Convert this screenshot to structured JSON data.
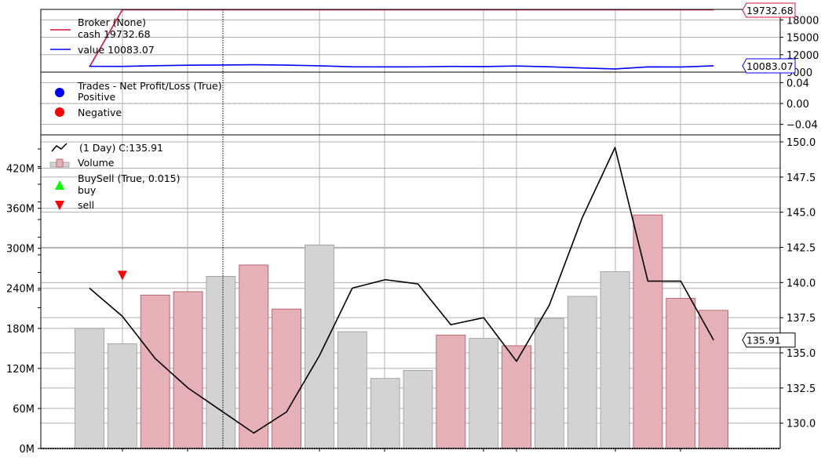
{
  "chart_data": [
    {
      "type": "line",
      "panel": "broker",
      "ylim": [
        9000,
        19800
      ],
      "yticks": [
        "9000",
        "12000",
        "15000",
        "18000"
      ],
      "ytick_values": [
        9000,
        12000,
        15000,
        18000
      ],
      "legend_placement": "top-left",
      "grid": true,
      "series": [
        {
          "name": "Broker (None)",
          "legend_text": "cash 19732.68",
          "color": "#dc143c",
          "values": [
            9900,
            19732.68,
            19732.68,
            19732.68,
            19732.68,
            19732.68,
            19732.68,
            19732.68,
            19732.68,
            19732.68,
            19732.68,
            19732.68,
            19732.68,
            19732.68,
            19732.68,
            19732.68,
            19732.68,
            19732.68,
            19732.68,
            19732.68
          ]
        },
        {
          "name": "value 10083.07",
          "color": "#0000ff",
          "values": [
            10000,
            9990,
            10110,
            10190,
            10230,
            10270,
            10210,
            10090,
            9920,
            9900,
            9910,
            9990,
            9960,
            10050,
            9920,
            9720,
            9550,
            9900,
            9880,
            10083.07
          ]
        }
      ],
      "last_value_labels": [
        {
          "text": "19732.68",
          "value": 19732.68,
          "color": "#dc143c"
        },
        {
          "text": "10083.07",
          "value": 10083.07,
          "color": "#0000ff"
        }
      ]
    },
    {
      "type": "scatter",
      "panel": "trades",
      "ylim": [
        -0.06,
        0.06
      ],
      "yticks": [
        "−0.04",
        "0.00",
        "0.04"
      ],
      "ytick_values": [
        -0.04,
        0,
        0.04
      ],
      "legend_placement": "top-left",
      "grid": true,
      "title_label": "Trades - Net Profit/Loss (True)",
      "series": [
        {
          "name": "Positive",
          "color": "#0000ff",
          "values": []
        },
        {
          "name": "Negative",
          "color": "#ff0000",
          "values": []
        }
      ]
    },
    {
      "type": "line",
      "panel": "price",
      "ylim": [
        128.2,
        150.5
      ],
      "yticks": [
        "130.0",
        "132.5",
        "135.0",
        "137.5",
        "140.0",
        "142.5",
        "145.0",
        "147.5",
        "150.0"
      ],
      "ytick_values": [
        130,
        132.5,
        135,
        137.5,
        140,
        142.5,
        145,
        147.5,
        150
      ],
      "volume_ylim": [
        0,
        470
      ],
      "volume_yticks": [
        "0M",
        "60M",
        "120M",
        "180M",
        "240M",
        "300M",
        "360M",
        "420M"
      ],
      "volume_ytick_values": [
        0,
        60,
        120,
        180,
        240,
        300,
        360,
        420
      ],
      "legend_placement": "top-left",
      "grid": true,
      "series": [
        {
          "name": " (1 Day) C:135.91",
          "color": "#000000",
          "values": [
            139.6,
            137.6,
            134.6,
            132.5,
            130.9,
            129.3,
            130.8,
            134.8,
            139.6,
            140.2,
            139.9,
            137.0,
            137.5,
            134.4,
            138.4,
            144.6,
            149.6,
            140.1,
            140.1,
            135.91
          ]
        },
        {
          "name": "Volume",
          "color": "#d3d3d3",
          "values": [
            180,
            157,
            230,
            235,
            258,
            275,
            209,
            305,
            175,
            105,
            117,
            170,
            165,
            154,
            195,
            228,
            265,
            350,
            225,
            207
          ],
          "up_color": "#d3d3d3",
          "down_color": "#e6b0b8",
          "down_bars": [
            false,
            false,
            true,
            true,
            false,
            true,
            true,
            false,
            false,
            false,
            false,
            true,
            false,
            true,
            false,
            false,
            false,
            true,
            true,
            true
          ]
        },
        {
          "name": "BuySell (True, 0.015)",
          "legend_text": "buy",
          "color": "#00ff00",
          "values": []
        },
        {
          "name": "sell",
          "color": "#ff0000",
          "values": [
            {
              "index": 1,
              "y": 140.5
            }
          ]
        }
      ],
      "last_value_label": {
        "text": "135.91",
        "value": 135.91
      }
    }
  ]
}
